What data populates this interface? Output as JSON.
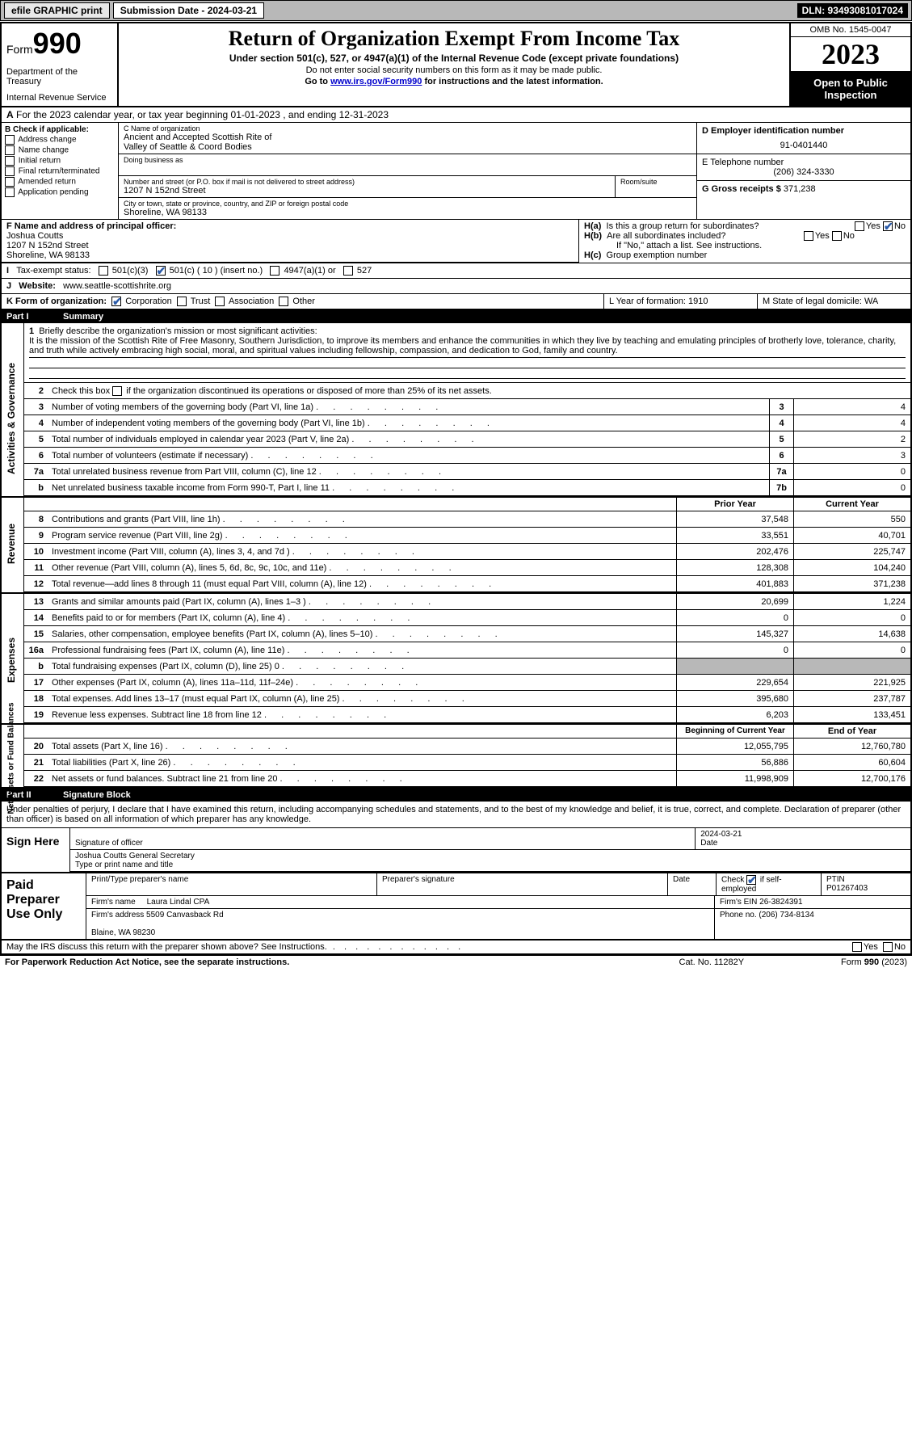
{
  "topbar": {
    "efile": "efile GRAPHIC print",
    "subdate_label": "Submission Date - 2024-03-21",
    "dln": "DLN: 93493081017024"
  },
  "header": {
    "form": "Form",
    "num": "990",
    "title": "Return of Organization Exempt From Income Tax",
    "sub": "Under section 501(c), 527, or 4947(a)(1) of the Internal Revenue Code (except private foundations)",
    "ssn": "Do not enter social security numbers on this form as it may be made public.",
    "goto_pre": "Go to ",
    "goto_link": "www.irs.gov/Form990",
    "goto_post": " for instructions and the latest information.",
    "dept": "Department of the Treasury",
    "irs": "Internal Revenue Service",
    "omb": "OMB No. 1545-0047",
    "year": "2023",
    "open": "Open to Public Inspection"
  },
  "A": {
    "text": "For the 2023 calendar year, or tax year beginning 01-01-2023    , and ending 12-31-2023"
  },
  "B": {
    "label": "B Check if applicable:",
    "items": [
      "Address change",
      "Name change",
      "Initial return",
      "Final return/terminated",
      "Amended return",
      "Application pending"
    ]
  },
  "C": {
    "name_label": "C Name of organization",
    "name1": "Ancient and Accepted Scottish Rite of",
    "name2": "Valley of Seattle & Coord Bodies",
    "dba": "Doing business as",
    "addr_label": "Number and street (or P.O. box if mail is not delivered to street address)",
    "room": "Room/suite",
    "addr": "1207 N 152nd Street",
    "city_label": "City or town, state or province, country, and ZIP or foreign postal code",
    "city": "Shoreline, WA  98133"
  },
  "D": {
    "label": "D Employer identification number",
    "val": "91-0401440"
  },
  "E": {
    "label": "E Telephone number",
    "val": "(206) 324-3330"
  },
  "G": {
    "label": "G Gross receipts $",
    "val": "371,238"
  },
  "F": {
    "label": "F  Name and address of principal officer:",
    "name": "Joshua Coutts",
    "addr": "1207 N 152nd Street",
    "city": "Shoreline, WA  98133"
  },
  "H": {
    "a": "Is this a group return for subordinates?",
    "b": "Are all subordinates included?",
    "ifno": "If \"No,\" attach a list. See instructions.",
    "c": "Group exemption number"
  },
  "I": {
    "label": "Tax-exempt status:",
    "a": "501(c)(3)",
    "b": "501(c) ( 10 ) (insert no.)",
    "c": "4947(a)(1) or",
    "d": "527"
  },
  "J": {
    "label": "Website:",
    "val": "www.seattle-scottishrite.org"
  },
  "K": {
    "label": "K Form of organization:",
    "a": "Corporation",
    "b": "Trust",
    "c": "Association",
    "d": "Other"
  },
  "L": {
    "label": "L Year of formation: 1910"
  },
  "M": {
    "label": "M State of legal domicile: WA"
  },
  "part1": {
    "label": "Part I",
    "title": "Summary"
  },
  "gov": {
    "label": "Activities & Governance",
    "l1": "Briefly describe the organization's mission or most significant activities:",
    "mission": "It is the mission of the Scottish Rite of Free Masonry, Southern Jurisdiction, to improve its members and enhance the communities in which they live by teaching and emulating principles of brotherly love, tolerance, charity, and truth while actively embracing high social, moral, and spiritual values including fellowship, compassion, and dedication to God, family and country.",
    "l2": "Check this box      if the organization discontinued its operations or disposed of more than 25% of its net assets.",
    "rows": [
      {
        "n": "3",
        "t": "Number of voting members of the governing body (Part VI, line 1a)",
        "b": "3",
        "v": "4"
      },
      {
        "n": "4",
        "t": "Number of independent voting members of the governing body (Part VI, line 1b)",
        "b": "4",
        "v": "4"
      },
      {
        "n": "5",
        "t": "Total number of individuals employed in calendar year 2023 (Part V, line 2a)",
        "b": "5",
        "v": "2"
      },
      {
        "n": "6",
        "t": "Total number of volunteers (estimate if necessary)",
        "b": "6",
        "v": "3"
      },
      {
        "n": "7a",
        "t": "Total unrelated business revenue from Part VIII, column (C), line 12",
        "b": "7a",
        "v": "0"
      },
      {
        "n": "b",
        "t": "Net unrelated business taxable income from Form 990-T, Part I, line 11",
        "b": "7b",
        "v": "0"
      }
    ]
  },
  "colhead": {
    "c1": "Prior Year",
    "c2": "Current Year"
  },
  "rev": {
    "label": "Revenue",
    "rows": [
      {
        "n": "8",
        "t": "Contributions and grants (Part VIII, line 1h)",
        "v1": "37,548",
        "v2": "550"
      },
      {
        "n": "9",
        "t": "Program service revenue (Part VIII, line 2g)",
        "v1": "33,551",
        "v2": "40,701"
      },
      {
        "n": "10",
        "t": "Investment income (Part VIII, column (A), lines 3, 4, and 7d )",
        "v1": "202,476",
        "v2": "225,747"
      },
      {
        "n": "11",
        "t": "Other revenue (Part VIII, column (A), lines 5, 6d, 8c, 9c, 10c, and 11e)",
        "v1": "128,308",
        "v2": "104,240"
      },
      {
        "n": "12",
        "t": "Total revenue—add lines 8 through 11 (must equal Part VIII, column (A), line 12)",
        "v1": "401,883",
        "v2": "371,238"
      }
    ]
  },
  "exp": {
    "label": "Expenses",
    "rows": [
      {
        "n": "13",
        "t": "Grants and similar amounts paid (Part IX, column (A), lines 1–3 )",
        "v1": "20,699",
        "v2": "1,224"
      },
      {
        "n": "14",
        "t": "Benefits paid to or for members (Part IX, column (A), line 4)",
        "v1": "0",
        "v2": "0"
      },
      {
        "n": "15",
        "t": "Salaries, other compensation, employee benefits (Part IX, column (A), lines 5–10)",
        "v1": "145,327",
        "v2": "14,638"
      },
      {
        "n": "16a",
        "t": "Professional fundraising fees (Part IX, column (A), line 11e)",
        "v1": "0",
        "v2": "0"
      },
      {
        "n": "b",
        "t": "Total fundraising expenses (Part IX, column (D), line 25) 0",
        "v1": "",
        "v2": "",
        "shaded": true
      },
      {
        "n": "17",
        "t": "Other expenses (Part IX, column (A), lines 11a–11d, 11f–24e)",
        "v1": "229,654",
        "v2": "221,925"
      },
      {
        "n": "18",
        "t": "Total expenses. Add lines 13–17 (must equal Part IX, column (A), line 25)",
        "v1": "395,680",
        "v2": "237,787"
      },
      {
        "n": "19",
        "t": "Revenue less expenses. Subtract line 18 from line 12",
        "v1": "6,203",
        "v2": "133,451"
      }
    ]
  },
  "net": {
    "label": "Net Assets or Fund Balances",
    "head": {
      "c1": "Beginning of Current Year",
      "c2": "End of Year"
    },
    "rows": [
      {
        "n": "20",
        "t": "Total assets (Part X, line 16)",
        "v1": "12,055,795",
        "v2": "12,760,780"
      },
      {
        "n": "21",
        "t": "Total liabilities (Part X, line 26)",
        "v1": "56,886",
        "v2": "60,604"
      },
      {
        "n": "22",
        "t": "Net assets or fund balances. Subtract line 21 from line 20",
        "v1": "11,998,909",
        "v2": "12,700,176"
      }
    ]
  },
  "part2": {
    "label": "Part II",
    "title": "Signature Block"
  },
  "perjury": "Under penalties of perjury, I declare that I have examined this return, including accompanying schedules and statements, and to the best of my knowledge and belief, it is true, correct, and complete. Declaration of preparer (other than officer) is based on all information of which preparer has any knowledge.",
  "sign": {
    "here": "Sign Here",
    "sig": "Signature of officer",
    "date": "Date",
    "dateval": "2024-03-21",
    "name": "Joshua Coutts  General Secretary",
    "type": "Type or print name and title"
  },
  "paid": {
    "label": "Paid Preparer Use Only",
    "h": [
      "Print/Type preparer's name",
      "Preparer's signature",
      "Date"
    ],
    "check": "Check ",
    "self": " if self-employed",
    "ptin": "PTIN",
    "ptinval": "P01267403",
    "firm": "Firm's name",
    "firmval": "Laura Lindal CPA",
    "ein": "Firm's EIN  26-3824391",
    "addr": "Firm's address",
    "addrval": "5509 Canvasback Rd",
    "city": "Blaine, WA  98230",
    "phone": "Phone no. (206) 734-8134"
  },
  "may": "May the IRS discuss this return with the preparer shown above? See Instructions.",
  "foot": {
    "pra": "For Paperwork Reduction Act Notice, see the separate instructions.",
    "cat": "Cat. No. 11282Y",
    "form": "Form 990 (2023)"
  }
}
